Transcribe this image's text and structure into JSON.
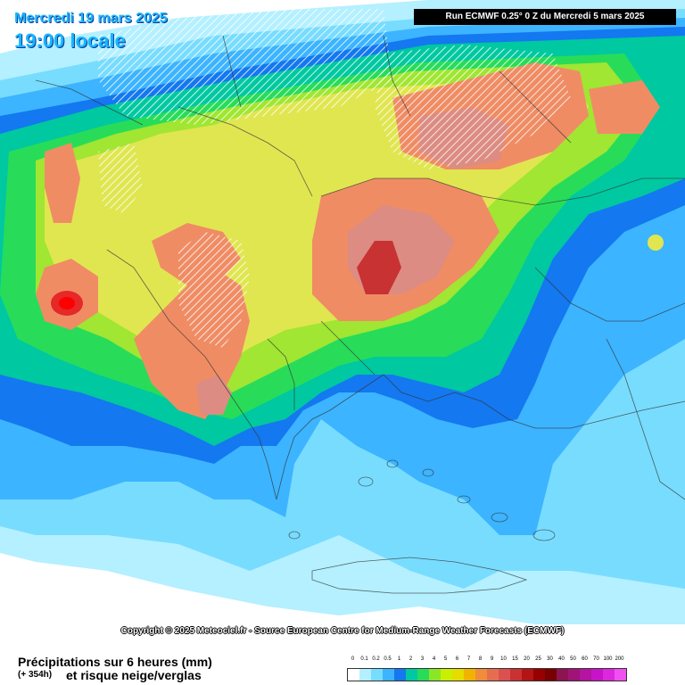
{
  "header": {
    "valid_date": "Mercredi 19 mars 2025",
    "valid_time": "19:00 locale",
    "run_info": "Run ECMWF 0.25° 0 Z du Mercredi 5 mars 2025"
  },
  "copyright": "Copyright © 2025 Meteociel.fr - Source European Centre for Medium-Range Weather Forecasts (ECMWF)",
  "footer": {
    "title": "Précipitations sur 6 heures (mm)",
    "lead_time": "(+ 354h)",
    "subtitle": "et risque neige/verglas"
  },
  "legend": {
    "labels": [
      "0",
      "0.1",
      "0.2",
      "0.5",
      "1",
      "2",
      "3",
      "4",
      "5",
      "6",
      "7",
      "8",
      "9",
      "10",
      "15",
      "20",
      "25",
      "30",
      "40",
      "50",
      "60",
      "70",
      "100",
      "200"
    ],
    "colors": [
      "#ffffff",
      "#b4f0ff",
      "#78dcff",
      "#3cb4ff",
      "#1478f0",
      "#00c8a0",
      "#28dc5a",
      "#8ce628",
      "#c8f000",
      "#e6dc00",
      "#f0b400",
      "#f08c3c",
      "#e66e50",
      "#dc5050",
      "#c83232",
      "#b41414",
      "#960000",
      "#780000",
      "#8c1450",
      "#a01478",
      "#b414a0",
      "#c814c8",
      "#dc28dc",
      "#f050f0"
    ]
  },
  "map": {
    "colors": {
      "white": "#ffffff",
      "very_light": "#b4f0ff",
      "light_blue": "#78dcff",
      "blue": "#3cb4ff",
      "dark_blue": "#1478f0",
      "teal": "#00c8a0",
      "green": "#28dc5a",
      "yellow_green": "#a0e632",
      "yellow": "#e0e650",
      "salmon": "#f08c64",
      "rose": "#dc8c82",
      "red": "#dc2828",
      "snow_hatch": "#ffffff"
    }
  }
}
